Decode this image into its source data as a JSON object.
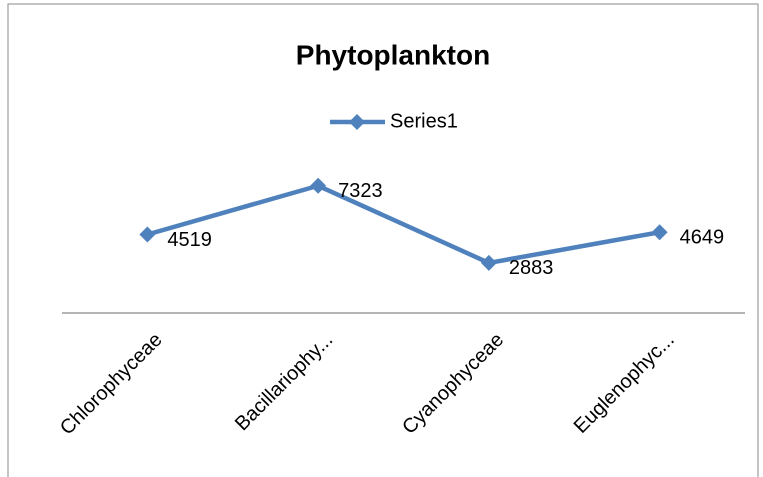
{
  "chart_data": {
    "type": "line",
    "title": "Phytoplankton",
    "categories": [
      "Chlorophyceae",
      "Bacillariophy...",
      "Cyanophyceae",
      "Euglenophyc..."
    ],
    "series": [
      {
        "name": "Series1",
        "color": "#4f81bd",
        "values": [
          4519,
          7323,
          2883,
          4649
        ]
      }
    ],
    "ylim": [
      0,
      8000
    ],
    "legend": "top",
    "grid": false
  }
}
